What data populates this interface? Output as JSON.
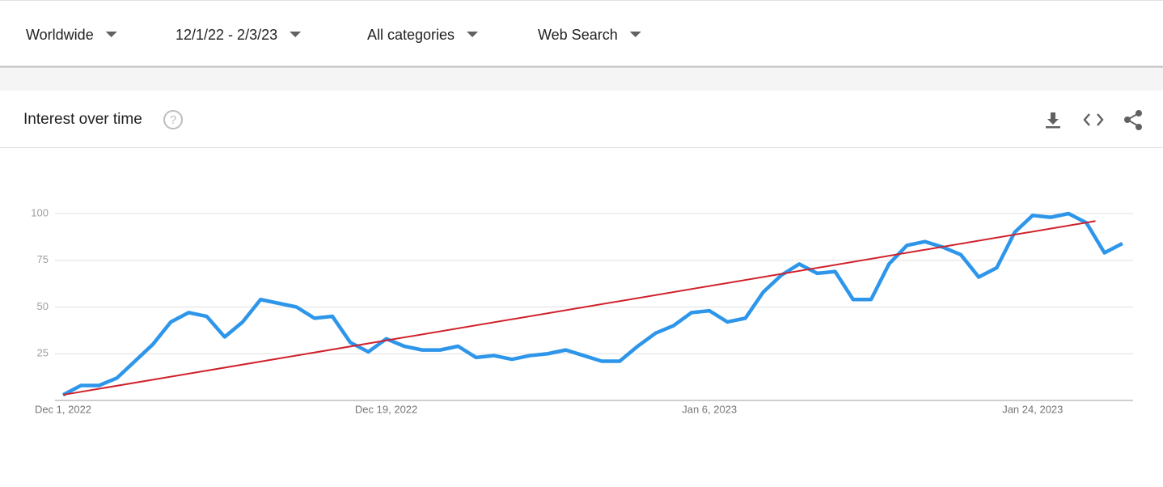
{
  "filters": [
    "Worldwide",
    "12/1/22 - 2/3/23",
    "All categories",
    "Web Search"
  ],
  "header": {
    "title": "Interest over time"
  },
  "chart_data": {
    "type": "line",
    "categories": [
      "Dec 1, 2022",
      null,
      null,
      null,
      null,
      null,
      null,
      null,
      null,
      null,
      null,
      null,
      null,
      null,
      null,
      null,
      null,
      null,
      "Dec 19, 2022",
      null,
      null,
      null,
      null,
      null,
      null,
      null,
      null,
      null,
      null,
      null,
      null,
      null,
      null,
      null,
      null,
      null,
      "Jan 6, 2023",
      null,
      null,
      null,
      null,
      null,
      null,
      null,
      null,
      null,
      null,
      null,
      null,
      null,
      null,
      null,
      null,
      null,
      "Jan 24, 2023",
      null,
      null,
      null,
      null,
      null
    ],
    "series": [
      {
        "color": "#2e96ea",
        "values": [
          3,
          8,
          8,
          12,
          21,
          30,
          42,
          47,
          45,
          34,
          42,
          54,
          52,
          50,
          44,
          45,
          31,
          26,
          33,
          29,
          27,
          27,
          29,
          23,
          24,
          22,
          24,
          25,
          27,
          24,
          21,
          21,
          29,
          36,
          40,
          47,
          48,
          42,
          44,
          58,
          67,
          73,
          68,
          69,
          54,
          54,
          73,
          83,
          85,
          82,
          78,
          66,
          71,
          90,
          99,
          98,
          100,
          95,
          79,
          84
        ]
      }
    ],
    "trend": {
      "color": "#d0212b",
      "start": {
        "index": 0,
        "value": 3
      },
      "end": {
        "index": 57.5,
        "value": 96
      }
    },
    "ylim": [
      0,
      100
    ],
    "yticks": [
      25,
      50,
      75,
      100
    ],
    "grid": true
  }
}
